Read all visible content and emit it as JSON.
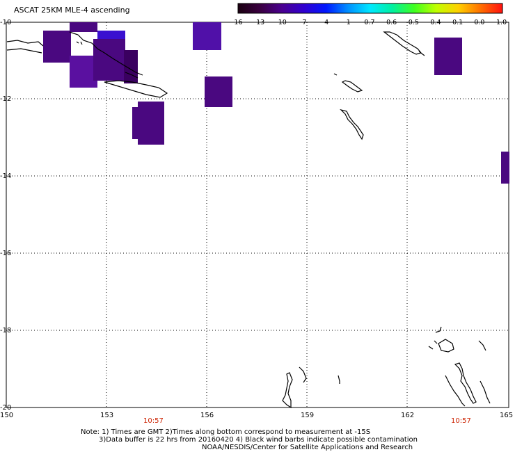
{
  "title": "ASCAT 25KM MLE-4 ascending",
  "colorbar": {
    "labels": [
      "-16",
      "-13",
      "-10",
      "-7",
      "-4",
      "-1",
      "-0.7",
      "-0.6",
      "-0.5",
      "-0.4",
      "-0.1",
      "0.0",
      "1.0"
    ],
    "colors": [
      "#1a0010",
      "#3a0040",
      "#4a0090",
      "#3000d0",
      "#0018ff",
      "#0090ff",
      "#00e8ff",
      "#00f0a0",
      "#40ff20",
      "#c0ff00",
      "#ffd000",
      "#ff7000",
      "#ff1010"
    ]
  },
  "axes": {
    "lat_labels": [
      "-10",
      "-12",
      "-14",
      "-16",
      "-18",
      "-20"
    ],
    "lon_labels": [
      "150",
      "153",
      "156",
      "159",
      "162",
      "165"
    ],
    "lat_range": [
      -20,
      -10
    ],
    "lon_range": [
      150,
      165
    ],
    "grid": true
  },
  "time_labels": [
    "10:57",
    "10:57"
  ],
  "notes": [
    "Note: 1) Times are GMT 2)Times along bottom correspond to measurement at -15S",
    "3)Data buffer is 22 hrs from 20160420 4) Black wind barbs indicate possible contamination",
    "NOAA/NESDIS/Center for Satellite Applications and Research"
  ],
  "colors": {
    "data_primary": "#4a0880",
    "data_secondary": "#5a10a0",
    "data_blue": "#3a10d0",
    "grid": "#000000",
    "time_text": "#cc2200"
  }
}
